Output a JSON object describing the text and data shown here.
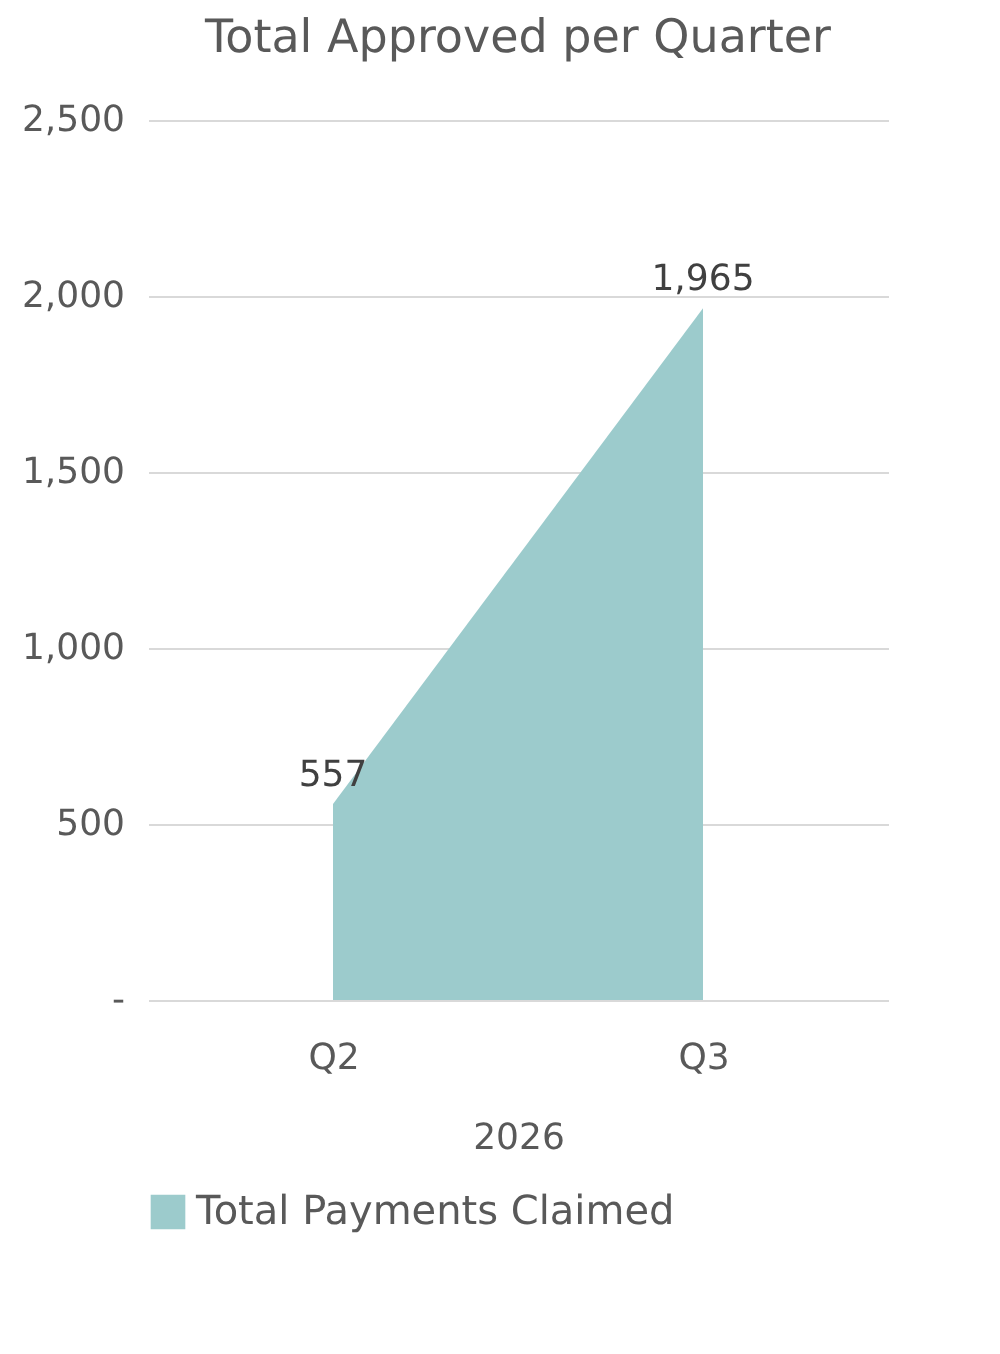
{
  "chart_data": {
    "type": "area",
    "title": "Total Approved per Quarter",
    "xlabel": "2026",
    "categories": [
      "Q2",
      "Q3"
    ],
    "series": [
      {
        "name": "Total Payments Claimed",
        "color": "#9ccbcc",
        "values": [
          557,
          1965
        ],
        "value_labels": [
          "557",
          "1,965"
        ]
      }
    ],
    "ylim": [
      0,
      2500
    ],
    "yticks": [
      {
        "value": 0,
        "label": "-"
      },
      500,
      {
        "value": 1000,
        "label": "1,000"
      },
      {
        "value": 1500,
        "label": "1,500"
      },
      {
        "value": 2000,
        "label": "2,000"
      },
      {
        "value": 2500,
        "label": "2,500"
      }
    ],
    "grid": "y",
    "legend": "bottom"
  }
}
